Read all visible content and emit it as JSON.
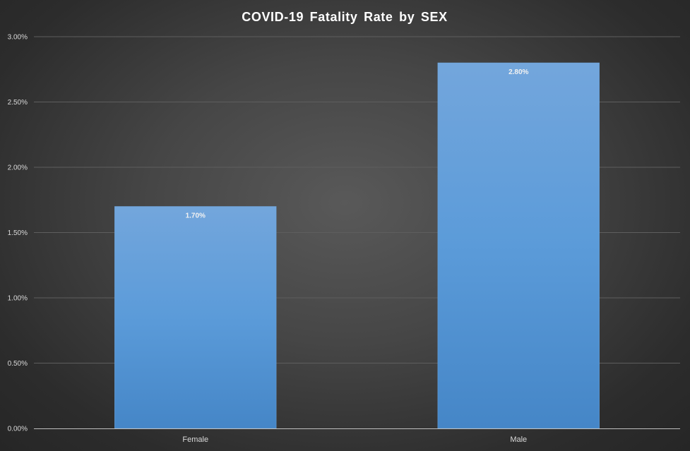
{
  "chart_data": {
    "type": "bar",
    "title": "COVID-19  Fatality  Rate  by  SEX",
    "categories": [
      "Female",
      "Male"
    ],
    "values": [
      1.7,
      2.8
    ],
    "value_labels": [
      "1.70%",
      "2.80%"
    ],
    "ylim": [
      0,
      3.0
    ],
    "y_ticks": [
      0,
      0.5,
      1.0,
      1.5,
      2.0,
      2.5,
      3.0
    ],
    "y_tick_labels": [
      "0.00%",
      "0.50%",
      "1.00%",
      "1.50%",
      "2.00%",
      "2.50%",
      "3.00%"
    ],
    "grid": true,
    "legend": "none",
    "bar_color": "#5b9bd5",
    "background_color": "#404040"
  }
}
